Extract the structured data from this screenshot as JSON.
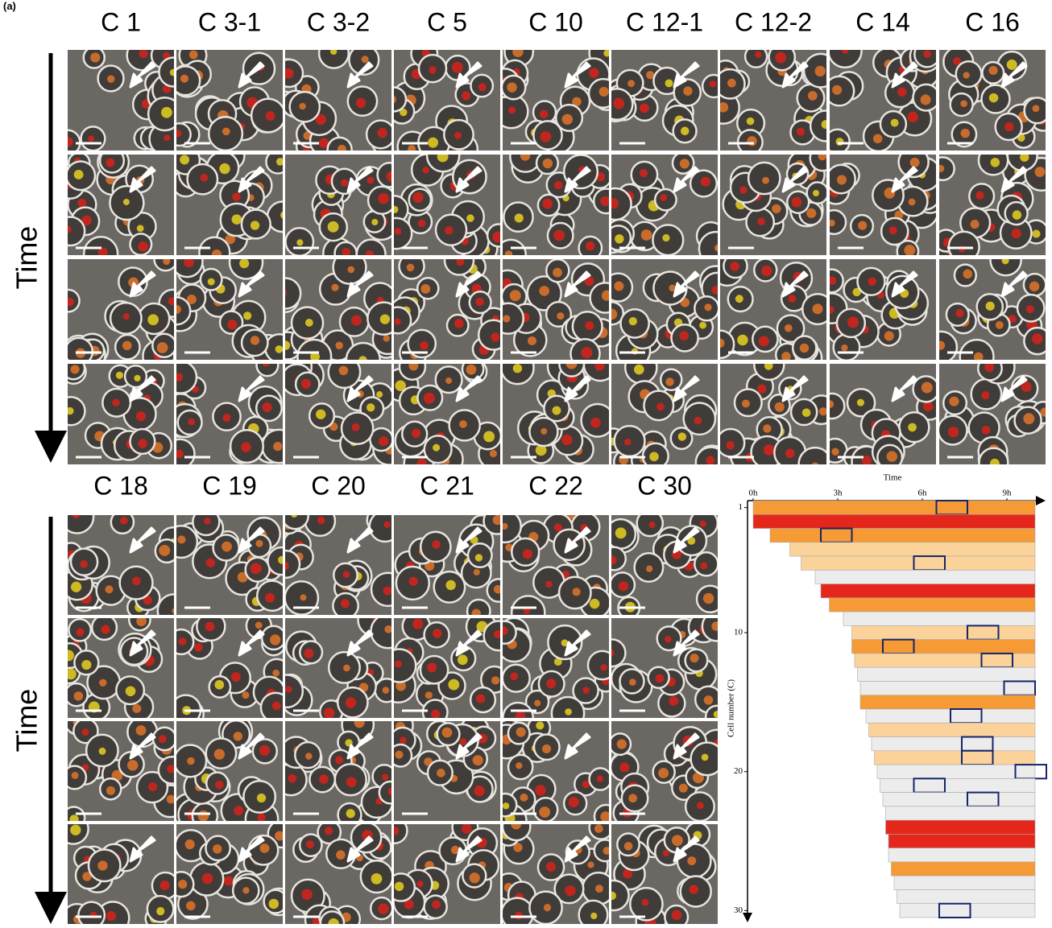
{
  "panel_label": "(a)",
  "time_label": "Time",
  "top_columns": [
    "C 1",
    "C 3-1",
    "C 3-2",
    "C 5",
    "C 10",
    "C 12-1",
    "C 12-2",
    "C 14",
    "C 16"
  ],
  "bottom_columns": [
    "C 18",
    "C 19",
    "C 20",
    "C 21",
    "C 22",
    "C 30"
  ],
  "chart_data": {
    "type": "heatmap",
    "title": "Time",
    "y_label": "Cell number (C)",
    "xlim": [
      0,
      10
    ],
    "xticks": [
      {
        "value": 0,
        "label": "0h"
      },
      {
        "value": 3,
        "label": "3h"
      },
      {
        "value": 6,
        "label": "6h"
      },
      {
        "value": 9,
        "label": "9h"
      }
    ],
    "ylim": [
      0.5,
      30.5
    ],
    "yticks": [
      1,
      10,
      20,
      30
    ],
    "rows": {
      "start": [
        0,
        0,
        0.6,
        1.3,
        1.7,
        2.2,
        2.4,
        2.7,
        3.2,
        3.5,
        3.5,
        3.6,
        3.7,
        3.8,
        3.8,
        4.0,
        4.1,
        4.2,
        4.3,
        4.4,
        4.5,
        4.6,
        4.7,
        4.7,
        4.8,
        4.8,
        4.9,
        5.0,
        5.1,
        5.2
      ],
      "level": [
        2,
        3,
        2,
        1,
        1,
        0,
        3,
        2,
        0,
        1,
        2,
        1,
        0,
        0,
        2,
        0,
        1,
        0,
        1,
        0,
        0,
        0,
        0,
        3,
        3,
        0,
        2,
        0,
        0,
        0
      ],
      "box": [
        6.5,
        null,
        2.4,
        null,
        5.7,
        null,
        null,
        null,
        null,
        7.6,
        4.6,
        8.1,
        null,
        8.9,
        null,
        7.0,
        null,
        7.4,
        7.4,
        9.3,
        5.7,
        7.6,
        null,
        null,
        null,
        null,
        null,
        null,
        null,
        6.6
      ]
    }
  }
}
